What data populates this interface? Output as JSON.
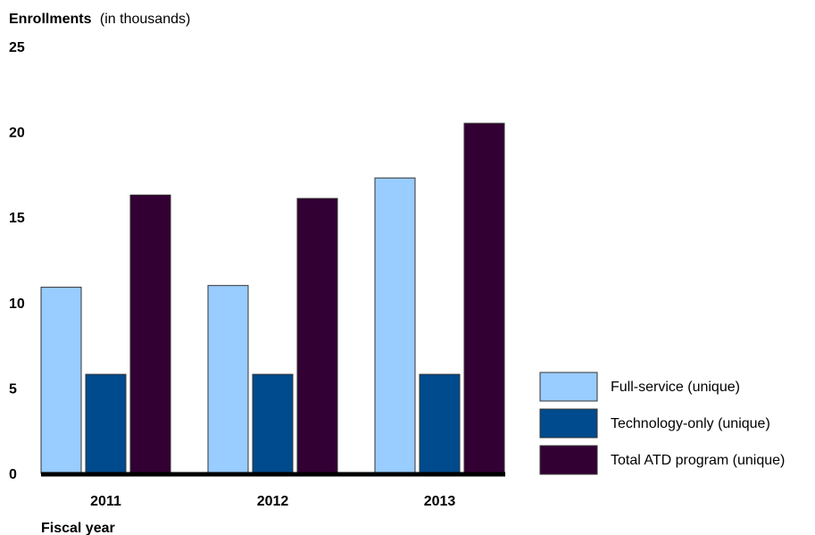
{
  "chart_data": {
    "type": "bar",
    "ylabel": "Enrollments",
    "ylabel_suffix": "(in thousands)",
    "xlabel": "Fiscal year",
    "categories": [
      "2011",
      "2012",
      "2013"
    ],
    "ylim": [
      0,
      25
    ],
    "yticks": [
      "0",
      "5",
      "10",
      "15",
      "20",
      "25"
    ],
    "grid": false,
    "legend_position": "right",
    "series": [
      {
        "name": "Full-service (unique)",
        "color": "#99ccff",
        "values": [
          10.9,
          11.0,
          17.3
        ]
      },
      {
        "name": "Technology-only (unique)",
        "color": "#004b8d",
        "values": [
          5.8,
          5.8,
          5.8
        ]
      },
      {
        "name": "Total ATD program (unique)",
        "color": "#330033",
        "values": [
          16.3,
          16.1,
          20.5
        ]
      }
    ]
  }
}
